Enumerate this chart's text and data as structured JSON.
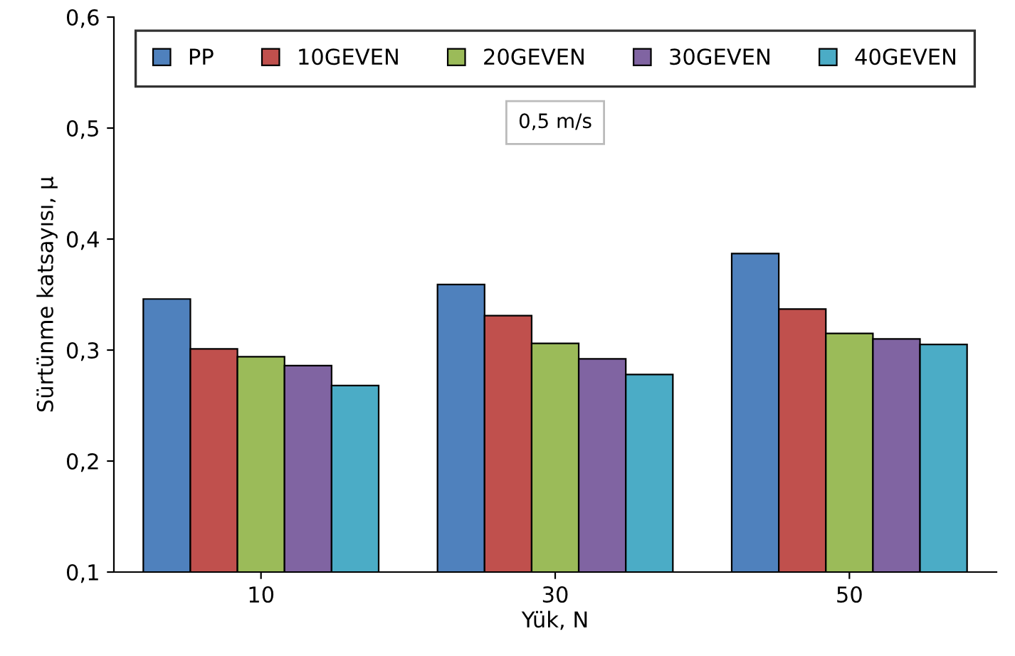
{
  "chart_data": {
    "type": "bar",
    "xlabel": "Yük, N",
    "ylabel": "Sürtünme katsayısı, μ",
    "categories": [
      "10",
      "30",
      "50"
    ],
    "series": [
      {
        "name": "PP",
        "color": "#4f81bd",
        "values": [
          0.346,
          0.359,
          0.387
        ]
      },
      {
        "name": "10GEVEN",
        "color": "#c0504d",
        "values": [
          0.301,
          0.331,
          0.337
        ]
      },
      {
        "name": "20GEVEN",
        "color": "#9bbb59",
        "values": [
          0.294,
          0.306,
          0.315
        ]
      },
      {
        "name": "30GEVEN",
        "color": "#8064a2",
        "values": [
          0.286,
          0.292,
          0.31
        ]
      },
      {
        "name": "40GEVEN",
        "color": "#4bacc6",
        "values": [
          0.268,
          0.278,
          0.305
        ]
      }
    ],
    "ylim": [
      0.1,
      0.6
    ],
    "yticks": [
      {
        "value": 0.1,
        "label": "0,1"
      },
      {
        "value": 0.2,
        "label": "0,2"
      },
      {
        "value": 0.3,
        "label": "0,3"
      },
      {
        "value": 0.4,
        "label": "0,4"
      },
      {
        "value": 0.5,
        "label": "0,5"
      },
      {
        "value": 0.6,
        "label": "0,6"
      }
    ],
    "annotations": [
      "0,5 m/s"
    ],
    "legend": "top",
    "grid": false
  }
}
